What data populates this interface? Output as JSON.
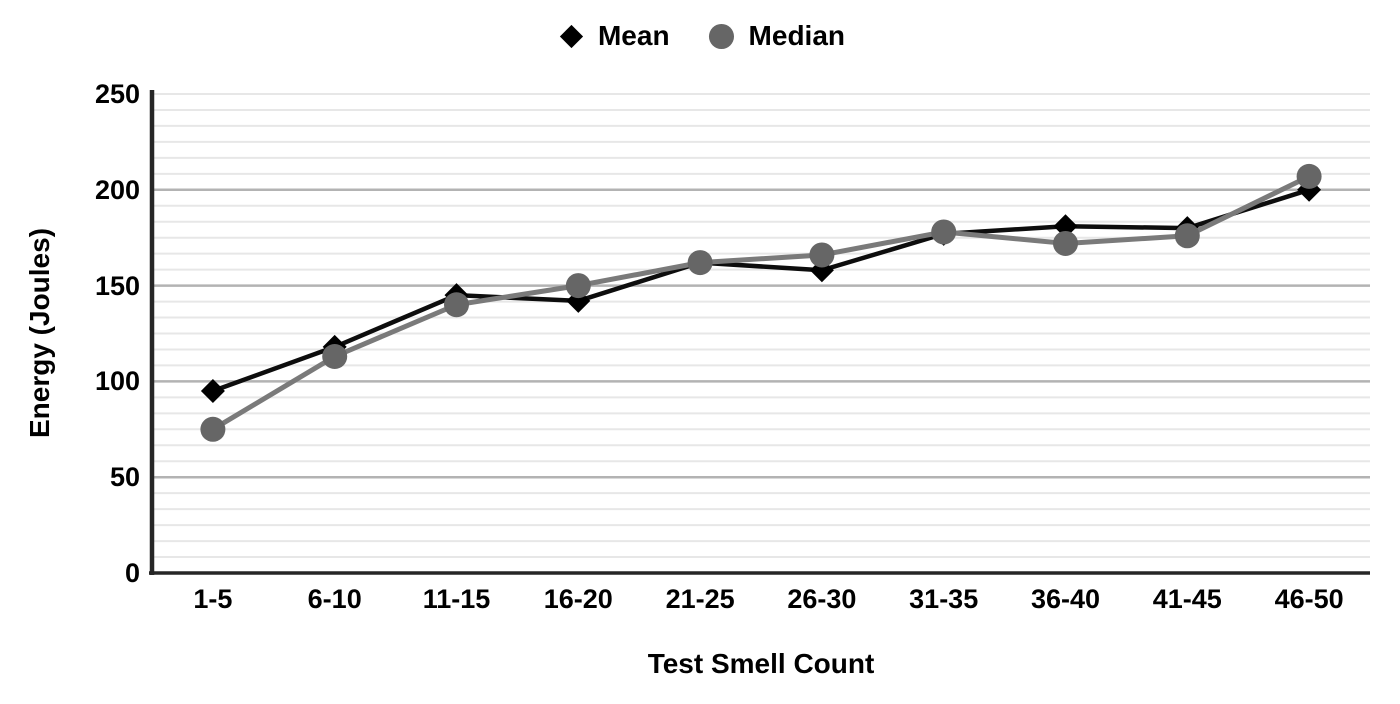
{
  "chart_data": {
    "type": "line",
    "title": "",
    "xlabel": "Test Smell Count",
    "ylabel": "Energy (Joules)",
    "categories": [
      "1-5",
      "6-10",
      "11-15",
      "16-20",
      "21-25",
      "26-30",
      "31-35",
      "36-40",
      "41-45",
      "46-50"
    ],
    "series": [
      {
        "name": "Mean",
        "marker": "diamond",
        "color": "#000000",
        "line_color": "#0d0d0d",
        "line_width": 4.5,
        "values": [
          95,
          118,
          145,
          142,
          162,
          158,
          177,
          181,
          180,
          200
        ]
      },
      {
        "name": "Median",
        "marker": "circle",
        "color": "#666666",
        "line_color": "#7a7a7a",
        "line_width": 5,
        "values": [
          75,
          113,
          140,
          150,
          162,
          166,
          178,
          172,
          176,
          207
        ]
      }
    ],
    "ylim": [
      0,
      250
    ],
    "y_ticks": [
      0,
      50,
      100,
      150,
      200,
      250
    ],
    "y_minor_per_major": 6,
    "grid": "horizontal",
    "legend_position": "top-center",
    "style": {
      "grid_minor": "#e7e7e7",
      "grid_major": "#b3b3b3",
      "axis_color": "#262626",
      "text_color": "#000000",
      "background": "#ffffff"
    }
  }
}
